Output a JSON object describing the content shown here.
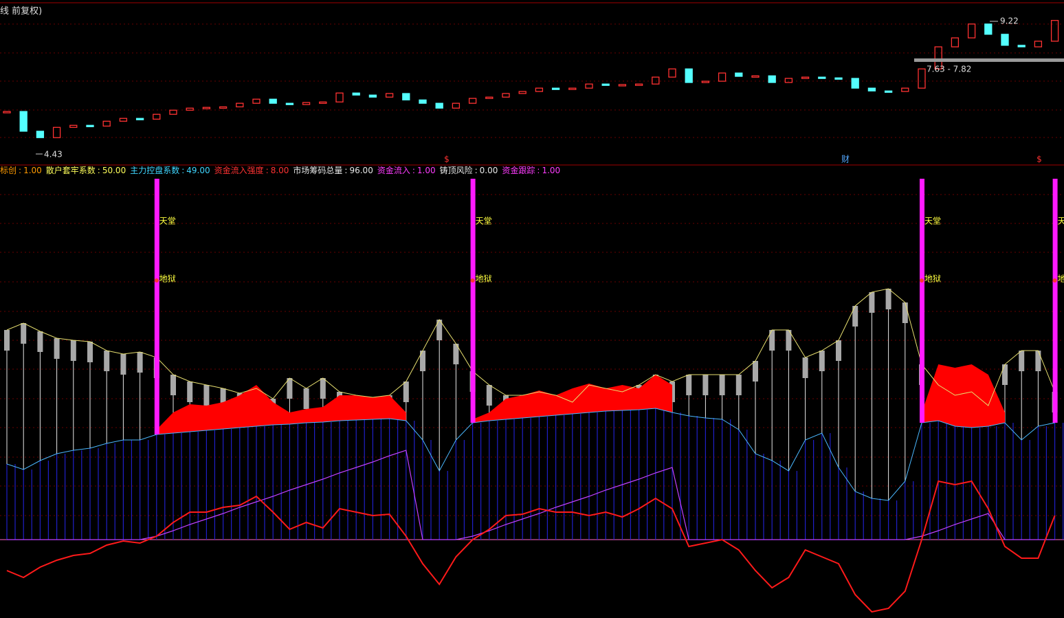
{
  "header": {
    "title": "线 前复权)"
  },
  "price_chart": {
    "type": "candlestick",
    "up_color": "#ff3232",
    "down_color": "#54ffff",
    "ylim": [
      4.2,
      9.4
    ],
    "close": [
      5.67,
      4.9,
      4.65,
      5.05,
      5.13,
      5.1,
      5.29,
      5.4,
      5.37,
      5.56,
      5.72,
      5.8,
      5.83,
      5.85,
      5.99,
      6.15,
      5.99,
      5.94,
      6.02,
      6.04,
      6.39,
      6.31,
      6.23,
      6.37,
      6.12,
      5.99,
      5.8,
      5.99,
      6.18,
      6.23,
      6.37,
      6.45,
      6.58,
      6.53,
      6.58,
      6.74,
      6.69,
      6.72,
      6.74,
      7.01,
      7.33,
      6.8,
      6.85,
      7.17,
      7.04,
      7.06,
      6.8,
      6.96,
      7.01,
      6.98,
      6.96,
      6.58,
      6.47,
      6.45,
      6.58,
      7.33,
      8.19,
      8.54,
      9.08,
      8.68,
      8.25,
      8.19,
      8.41,
      9.22
    ],
    "low_label": "4.43",
    "high_label": "9.22",
    "range_label": "7.63 - 7.82",
    "markers": [
      "$",
      "财",
      "$"
    ]
  },
  "indicator_legend": [
    {
      "name": "标创",
      "value": "1.00",
      "color": "#ff9a00"
    },
    {
      "name": "散户套牢系数",
      "value": "50.00",
      "color": "#ffff5a"
    },
    {
      "name": "主力控盘系数",
      "value": "49.00",
      "color": "#3fd6ff"
    },
    {
      "name": "资金流入强度",
      "value": "8.00",
      "color": "#ff3232"
    },
    {
      "name": "市场筹码总量",
      "value": "96.00",
      "color": "#e8e8e8"
    },
    {
      "name": "资金流入",
      "value": "1.00",
      "color": "#ff3cff"
    },
    {
      "name": "铸顶风险",
      "value": "0.00",
      "color": "#e8e8e8"
    },
    {
      "name": "资金跟踪",
      "value": "1.00",
      "color": "#ff3cff"
    }
  ],
  "indicator_chart": {
    "type": "composite",
    "ylim": [
      -114,
      525
    ],
    "upper": [
      305,
      315,
      303,
      293,
      290,
      288,
      275,
      270,
      273,
      265,
      240,
      230,
      225,
      220,
      213,
      220,
      205,
      235,
      220,
      235,
      215,
      210,
      207,
      210,
      230,
      275,
      320,
      285,
      245,
      225,
      210,
      210,
      215,
      210,
      200,
      225,
      220,
      215,
      225,
      240,
      230,
      240,
      240,
      240,
      240,
      260,
      305,
      305,
      265,
      275,
      290,
      340,
      360,
      365,
      345,
      255,
      225,
      210,
      215,
      195,
      255,
      275,
      275,
      215
    ],
    "lower": [
      110,
      102,
      115,
      125,
      130,
      133,
      140,
      145,
      145,
      153,
      155,
      157,
      159,
      161,
      163,
      165,
      167,
      168,
      170,
      171,
      173,
      174,
      175,
      176,
      173,
      145,
      100,
      145,
      170,
      173,
      175,
      177,
      179,
      181,
      183,
      185,
      187,
      188,
      189,
      191,
      185,
      180,
      177,
      175,
      160,
      125,
      115,
      100,
      145,
      155,
      105,
      70,
      60,
      57,
      85,
      170,
      173,
      165,
      163,
      165,
      170,
      145,
      165,
      170
    ],
    "red_area": [
      null,
      null,
      null,
      null,
      null,
      null,
      null,
      null,
      null,
      160,
      185,
      197,
      195,
      200,
      210,
      225,
      200,
      185,
      190,
      193,
      210,
      210,
      207,
      210,
      185,
      null,
      null,
      null,
      175,
      185,
      205,
      210,
      217,
      210,
      220,
      227,
      220,
      225,
      220,
      240,
      225,
      null,
      null,
      null,
      null,
      null,
      null,
      null,
      null,
      null,
      null,
      null,
      null,
      null,
      null,
      185,
      255,
      250,
      255,
      240,
      185,
      null,
      null,
      205
    ],
    "red_line": [
      -45,
      -55,
      -40,
      -30,
      -23,
      -20,
      -8,
      -2,
      -5,
      5,
      25,
      40,
      40,
      47,
      50,
      63,
      40,
      15,
      25,
      17,
      45,
      40,
      35,
      37,
      5,
      -35,
      -65,
      -25,
      0,
      15,
      35,
      37,
      45,
      40,
      40,
      35,
      40,
      33,
      45,
      60,
      45,
      -10,
      -5,
      0,
      -15,
      -45,
      -70,
      -55,
      -15,
      -25,
      -35,
      -80,
      -105,
      -100,
      -75,
      0,
      85,
      80,
      85,
      45,
      -10,
      -27,
      -27,
      35
    ],
    "purple_line": [
      0,
      0,
      0,
      0,
      0,
      0,
      0,
      0,
      0,
      5,
      13,
      22,
      30,
      38,
      47,
      55,
      63,
      72,
      80,
      88,
      97,
      105,
      113,
      122,
      130,
      0,
      0,
      0,
      5,
      13,
      22,
      30,
      38,
      47,
      55,
      63,
      72,
      80,
      88,
      97,
      105,
      0,
      0,
      0,
      0,
      0,
      0,
      0,
      0,
      0,
      0,
      0,
      0,
      0,
      0,
      5,
      13,
      22,
      30,
      38,
      0,
      0,
      0,
      0
    ],
    "signal_indexes": [
      9,
      28,
      55,
      63
    ],
    "signal_labels": [
      "天堂",
      "地狱"
    ]
  }
}
